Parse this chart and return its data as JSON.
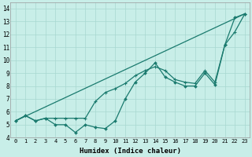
{
  "xlabel": "Humidex (Indice chaleur)",
  "bg_color": "#c8eee8",
  "line_color": "#1a7a6e",
  "grid_color": "#a8d8d0",
  "xlim": [
    -0.5,
    23.5
  ],
  "ylim": [
    4.0,
    14.5
  ],
  "yticks": [
    4,
    5,
    6,
    7,
    8,
    9,
    10,
    11,
    12,
    13,
    14
  ],
  "xticks": [
    0,
    1,
    2,
    3,
    4,
    5,
    6,
    7,
    8,
    9,
    10,
    11,
    12,
    13,
    14,
    15,
    16,
    17,
    18,
    19,
    20,
    21,
    22,
    23
  ],
  "line1_x": [
    0,
    1,
    2,
    3,
    4,
    5,
    6,
    7,
    8,
    9,
    10,
    11,
    12,
    13,
    14,
    15,
    16,
    17,
    18,
    19,
    20,
    21,
    22,
    23
  ],
  "line1_y": [
    5.3,
    5.7,
    5.3,
    5.5,
    5.0,
    5.0,
    4.4,
    5.0,
    4.8,
    4.7,
    5.3,
    7.0,
    8.3,
    9.0,
    9.8,
    8.7,
    8.3,
    8.0,
    8.0,
    9.0,
    8.1,
    11.2,
    13.3,
    13.6
  ],
  "line2_x": [
    0,
    23
  ],
  "line2_y": [
    5.3,
    13.6
  ],
  "line3_x": [
    0,
    1,
    2,
    3,
    4,
    5,
    6,
    7,
    8,
    9,
    10,
    11,
    12,
    13,
    14,
    15,
    16,
    17,
    18,
    19,
    20,
    21,
    22,
    23
  ],
  "line3_y": [
    5.3,
    5.7,
    5.3,
    5.5,
    5.5,
    5.5,
    5.5,
    5.5,
    6.8,
    7.5,
    7.8,
    8.2,
    8.8,
    9.2,
    9.5,
    9.2,
    8.5,
    8.3,
    8.2,
    9.2,
    8.3,
    11.2,
    12.2,
    13.6
  ]
}
